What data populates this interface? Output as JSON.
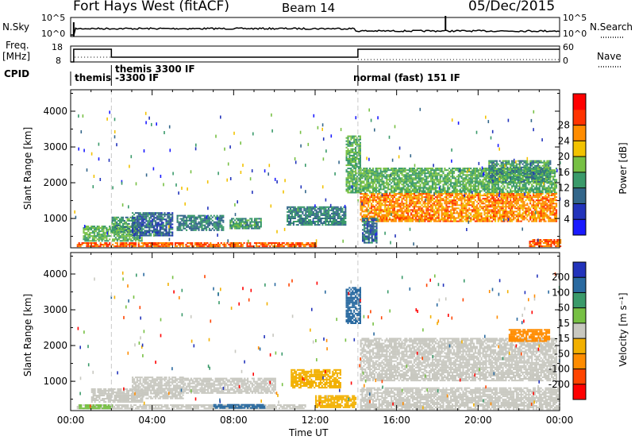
{
  "header": {
    "station": "Fort Hays West (fitACF)",
    "beam": "Beam 14",
    "date": "05/Dec/2015"
  },
  "left_labels": {
    "nsky": "N.Sky",
    "freq_line1": "Freq.",
    "freq_line2": "[MHz]",
    "cpid": "CPID"
  },
  "right_labels": {
    "nsearch": "N.Search",
    "nave": "Nave"
  },
  "noise_axis": {
    "left_ticks": [
      "10^5",
      "10^0"
    ],
    "right_ticks": [
      "10^5",
      "10^0"
    ]
  },
  "freq_axis": {
    "left_ticks": [
      "18",
      "8"
    ],
    "right_ticks": [
      "60",
      "0"
    ]
  },
  "cpid_labels": [
    "themis",
    "themis 3300 IF",
    "-3300 IF",
    "normal (fast) 151 IF"
  ],
  "colors": {
    "power_scale": [
      "#1a1aff",
      "#2233bb",
      "#33668a",
      "#3a9a6a",
      "#77c044",
      "#f2c200",
      "#ff8c00",
      "#ff3300",
      "#ff0000"
    ],
    "velocity_scale": [
      "#2233bb",
      "#2a6aa0",
      "#3a9a6a",
      "#77c044",
      "#c8c8c0",
      "#f2b000",
      "#ff8c00",
      "#ff4400",
      "#ff0000"
    ],
    "ground_scatter": "#c8c8c0"
  },
  "chart_data": [
    {
      "type": "heatmap",
      "panel": "power",
      "ylabel": "Slant Range [km]",
      "ylim": [
        180,
        4600
      ],
      "yticks": [
        "1000",
        "2000",
        "3000",
        "4000"
      ],
      "xlim": [
        "00:00",
        "24:00"
      ],
      "colorbar_label": "Power [dB]",
      "colorbar_ticks": [
        "4",
        "8",
        "12",
        "16",
        "20",
        "24",
        "28"
      ],
      "colorbar_range": [
        0,
        32
      ],
      "regions": [
        {
          "t0": 0.3,
          "t1": 12.0,
          "r0": 200,
          "r1": 320,
          "level": 28
        },
        {
          "t0": 0.6,
          "t1": 3.5,
          "r0": 350,
          "r1": 800,
          "level": 16
        },
        {
          "t0": 2.0,
          "t1": 3.2,
          "r0": 600,
          "r1": 1050,
          "level": 14
        },
        {
          "t0": 3.0,
          "t1": 5.0,
          "r0": 500,
          "r1": 1150,
          "level": 10
        },
        {
          "t0": 5.2,
          "t1": 7.5,
          "r0": 650,
          "r1": 1100,
          "level": 12
        },
        {
          "t0": 7.8,
          "t1": 9.3,
          "r0": 700,
          "r1": 1000,
          "level": 14
        },
        {
          "t0": 10.6,
          "t1": 13.5,
          "r0": 800,
          "r1": 1300,
          "level": 12
        },
        {
          "t0": 13.5,
          "t1": 14.2,
          "r0": 1700,
          "r1": 3300,
          "level": 16
        },
        {
          "t0": 14.2,
          "t1": 23.8,
          "r0": 1700,
          "r1": 2400,
          "level": 16
        },
        {
          "t0": 14.2,
          "t1": 23.8,
          "r0": 900,
          "r1": 1700,
          "level": 26
        },
        {
          "t0": 14.3,
          "t1": 15.0,
          "r0": 300,
          "r1": 1000,
          "level": 10
        },
        {
          "t0": 20.5,
          "t1": 23.5,
          "r0": 2000,
          "r1": 2600,
          "level": 14
        },
        {
          "t0": 22.5,
          "t1": 24.0,
          "r0": 200,
          "r1": 400,
          "level": 28
        }
      ]
    },
    {
      "type": "heatmap",
      "panel": "velocity",
      "ylabel": "Slant Range [km]",
      "ylim": [
        180,
        4600
      ],
      "yticks": [
        "1000",
        "2000",
        "3000",
        "4000"
      ],
      "xlim": [
        "00:00",
        "24:00"
      ],
      "xlabel": "Time UT",
      "xticks": [
        "00:00",
        "04:00",
        "08:00",
        "12:00",
        "16:00",
        "20:00",
        "00:00"
      ],
      "colorbar_label": "Velocity [m s⁻¹]",
      "colorbar_ticks": [
        "200",
        "100",
        "50",
        "15",
        "-15",
        "-50",
        "-100",
        "-200"
      ],
      "regions": [
        {
          "t0": 0.3,
          "t1": 11.5,
          "r0": 220,
          "r1": 340,
          "level": 0
        },
        {
          "t0": 0.4,
          "t1": 2.0,
          "r0": 220,
          "r1": 330,
          "level": 30
        },
        {
          "t0": 1.0,
          "t1": 3.5,
          "r0": 400,
          "r1": 800,
          "level": 0
        },
        {
          "t0": 3.0,
          "t1": 5.5,
          "r0": 500,
          "r1": 1100,
          "level": 0
        },
        {
          "t0": 5.5,
          "t1": 10.0,
          "r0": 650,
          "r1": 1100,
          "level": 0
        },
        {
          "t0": 7.0,
          "t1": 9.5,
          "r0": 230,
          "r1": 330,
          "level": 120
        },
        {
          "t0": 10.8,
          "t1": 13.2,
          "r0": 800,
          "r1": 1300,
          "level": -40
        },
        {
          "t0": 12.0,
          "t1": 14.0,
          "r0": 250,
          "r1": 600,
          "level": -40
        },
        {
          "t0": 13.5,
          "t1": 14.2,
          "r0": 2600,
          "r1": 3600,
          "level": 150
        },
        {
          "t0": 14.2,
          "t1": 23.8,
          "r0": 1000,
          "r1": 2200,
          "level": 0
        },
        {
          "t0": 14.2,
          "t1": 24.0,
          "r0": 200,
          "r1": 800,
          "level": 0
        },
        {
          "t0": 21.5,
          "t1": 23.5,
          "r0": 2100,
          "r1": 2450,
          "level": -90
        }
      ]
    }
  ]
}
